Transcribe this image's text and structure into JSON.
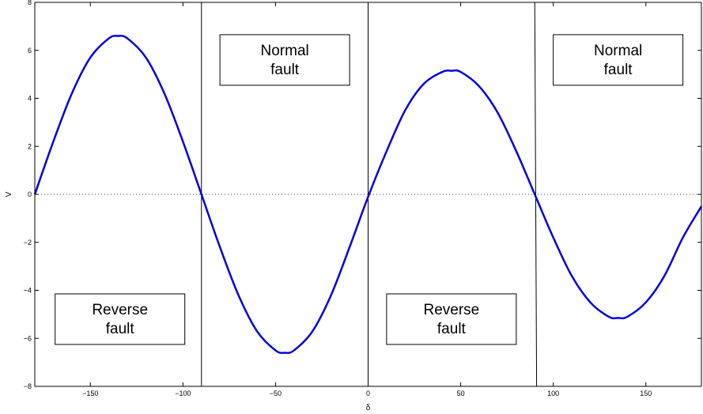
{
  "chart_data": {
    "type": "line",
    "title": "",
    "xlabel": "δ",
    "ylabel": "V",
    "xlim": [
      -180,
      180
    ],
    "ylim": [
      -8,
      8
    ],
    "grid": false,
    "xticks": [
      -150,
      -100,
      -50,
      0,
      50,
      100,
      150
    ],
    "xtick_labels": [
      "−150",
      "−100",
      "−50",
      "0",
      "50",
      "100",
      "150"
    ],
    "yticks": [
      -8,
      -6,
      -4,
      -2,
      0,
      2,
      4,
      6,
      8
    ],
    "ytick_labels": [
      "−8",
      "−6",
      "−4",
      "−2",
      "0",
      "2",
      "4",
      "6",
      "8"
    ],
    "series": [
      {
        "color": "#0000dd",
        "x": [
          -180,
          -170,
          -160,
          -150,
          -140,
          -135,
          -130,
          -120,
          -110,
          -100,
          -90,
          -80,
          -70,
          -60,
          -50,
          -45,
          -40,
          -30,
          -20,
          -10,
          0,
          10,
          20,
          30,
          40,
          45,
          50,
          60,
          70,
          80,
          90,
          100,
          110,
          120,
          130,
          135,
          140,
          150,
          160,
          170,
          180
        ],
        "y": [
          0,
          2.2,
          4.2,
          5.7,
          6.5,
          6.6,
          6.5,
          5.7,
          4.2,
          2.2,
          0,
          -2.2,
          -4.2,
          -5.7,
          -6.5,
          -6.6,
          -6.5,
          -5.7,
          -4.2,
          -2.2,
          -0.1,
          1.8,
          3.5,
          4.6,
          5.1,
          5.15,
          5.1,
          4.5,
          3.4,
          1.8,
          0,
          -1.8,
          -3.4,
          -4.5,
          -5.1,
          -5.15,
          -5.1,
          -4.5,
          -3.4,
          -1.8,
          -0.5
        ]
      }
    ],
    "reference_line": {
      "y": 0,
      "style": "dotted"
    },
    "vertical_lines": [
      {
        "x1": -90,
        "x2": -90
      },
      {
        "x1": 0,
        "x2": 0
      },
      {
        "x1": 90,
        "x2": 91
      }
    ],
    "annotations": [
      {
        "line1": "Normal",
        "line2": "fault",
        "x": -45,
        "y": 5.6
      },
      {
        "line1": "Normal",
        "line2": "fault",
        "x": 135,
        "y": 5.6
      },
      {
        "line1": "Reverse",
        "line2": "fault",
        "x": -134,
        "y": -5.2
      },
      {
        "line1": "Reverse",
        "line2": "fault",
        "x": 45,
        "y": -5.2
      }
    ]
  }
}
